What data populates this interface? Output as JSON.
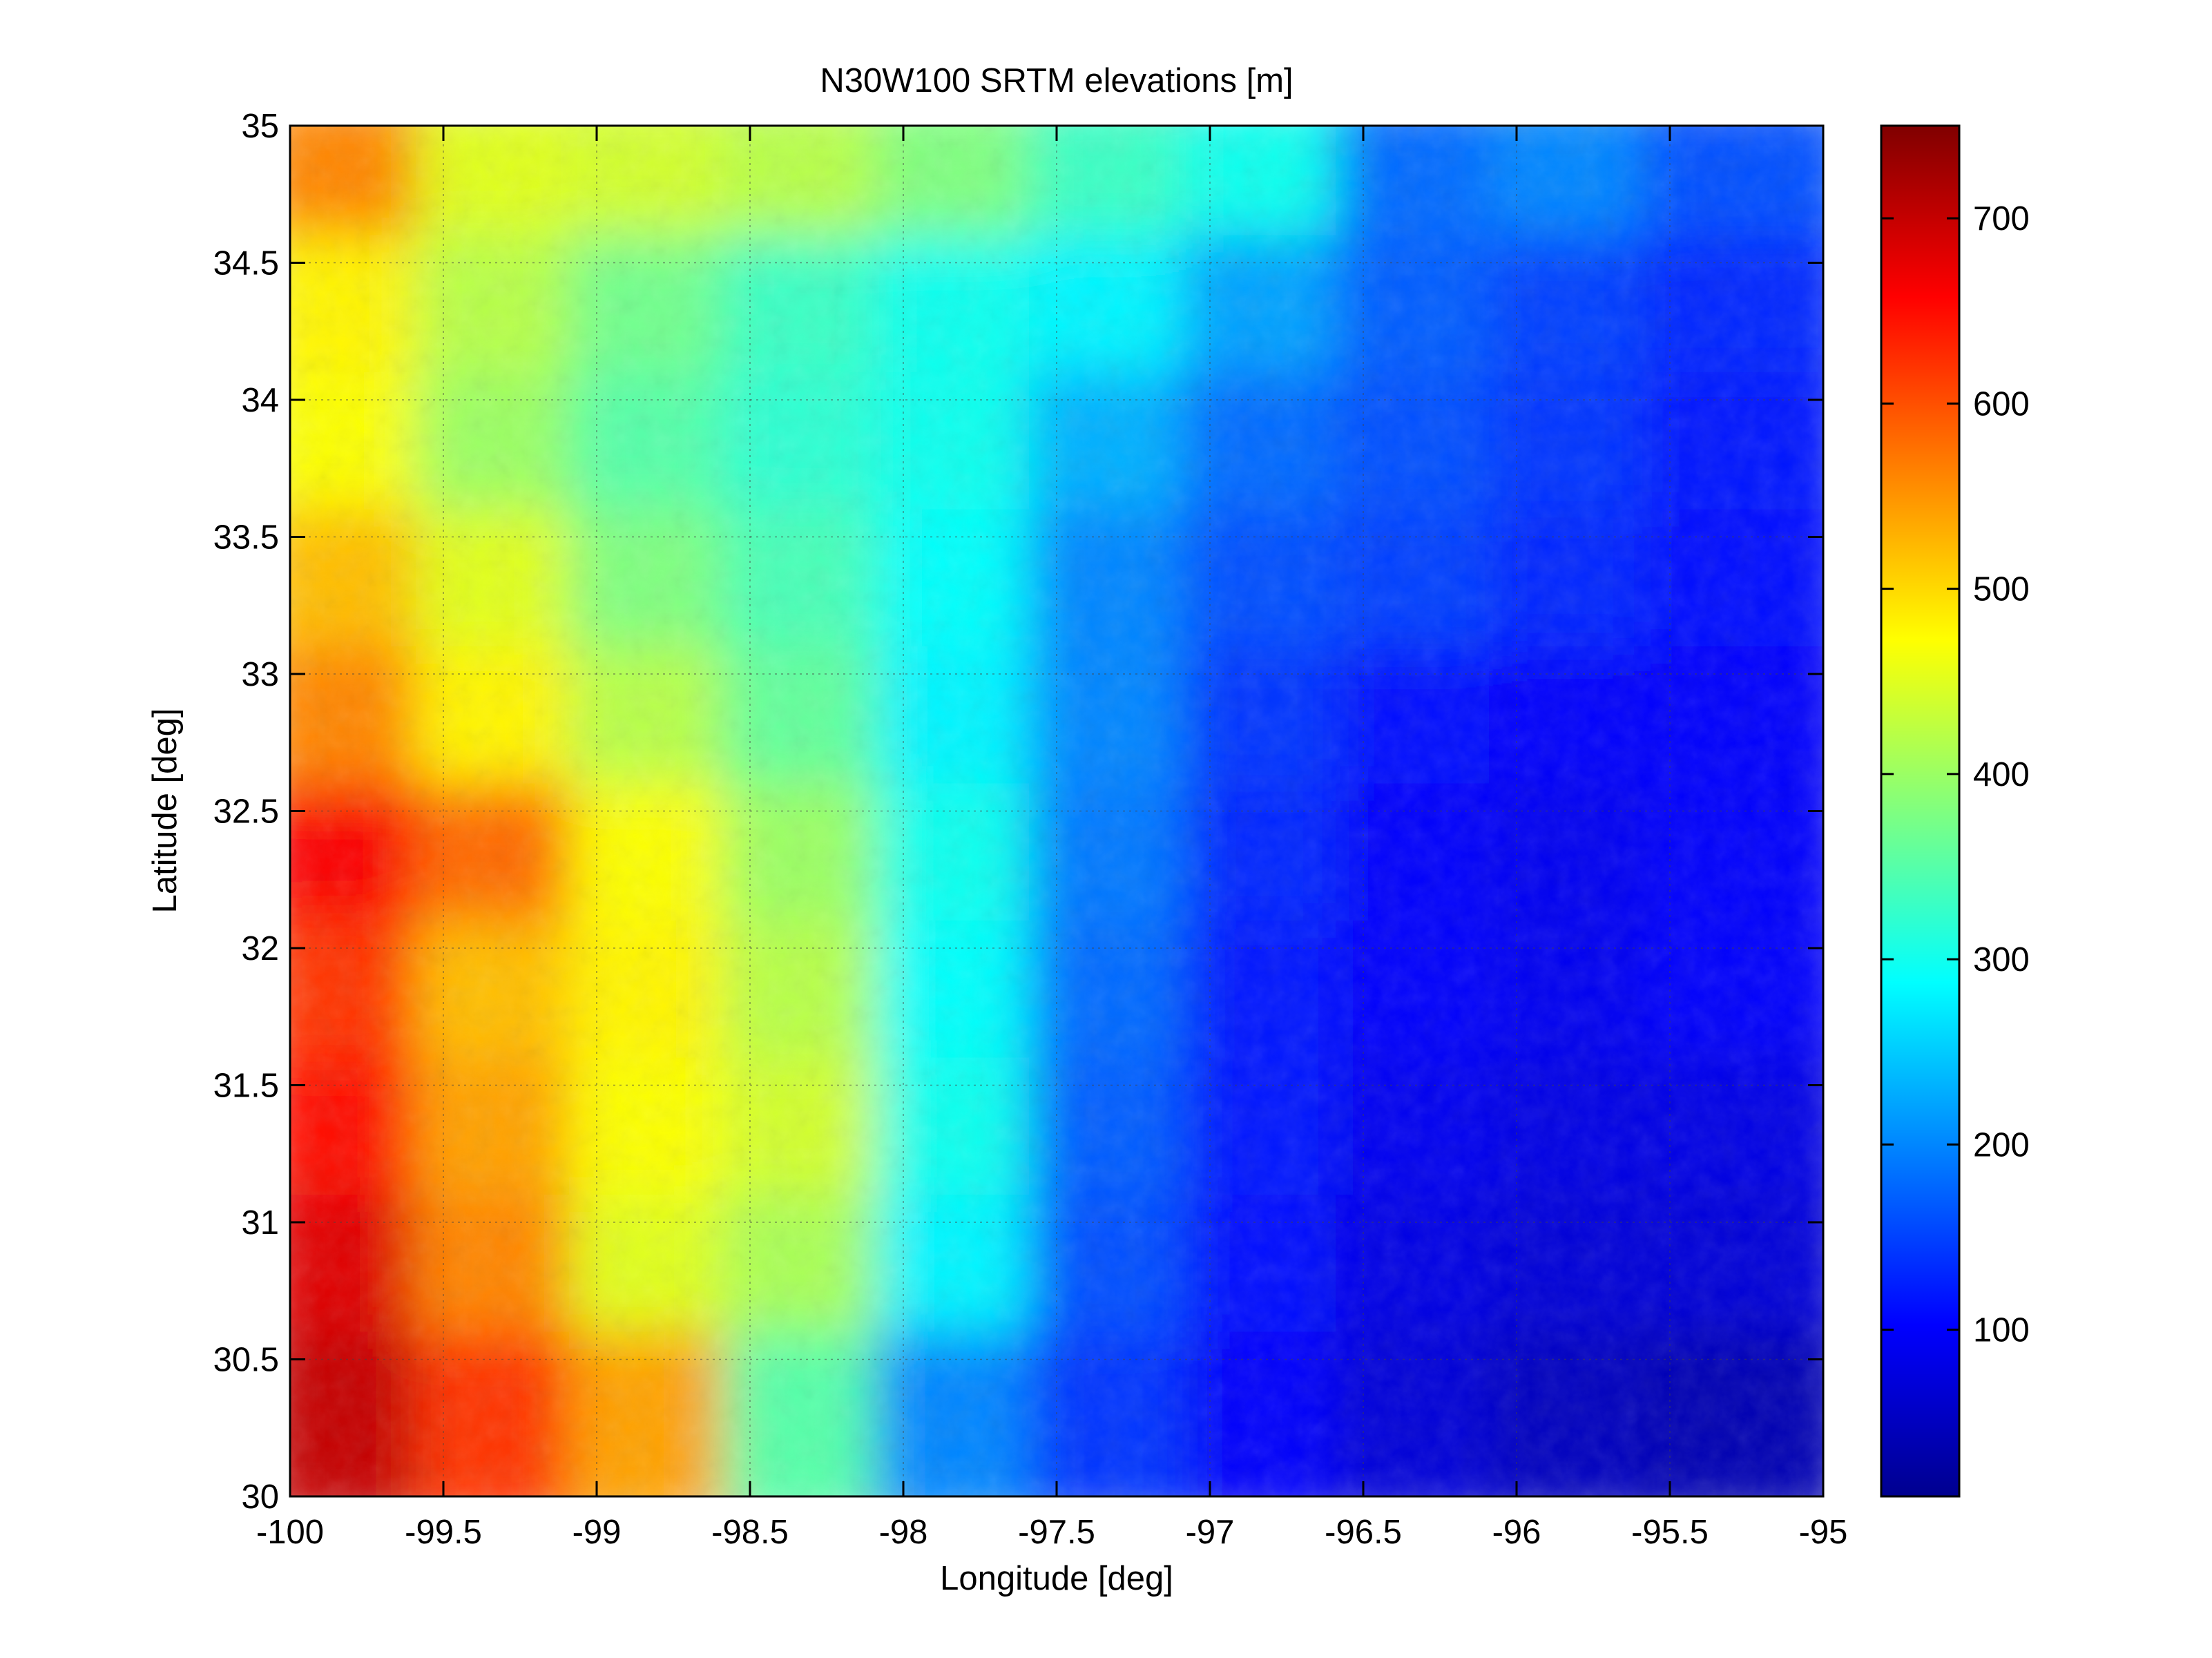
{
  "chart_data": {
    "type": "heatmap",
    "title": "N30W100 SRTM elevations [m]",
    "xlabel": "Longitude [deg]",
    "ylabel": "Latitude [deg]",
    "xlim": [
      -100,
      -95
    ],
    "ylim": [
      30,
      35
    ],
    "x_ticks": [
      -100,
      -99.5,
      -99,
      -98.5,
      -98,
      -97.5,
      -97,
      -96.5,
      -96,
      -95.5,
      -95
    ],
    "x_tick_labels": [
      "-100",
      "-99.5",
      "-99",
      "-98.5",
      "-98",
      "-97.5",
      "-97",
      "-96.5",
      "-96",
      "-95.5",
      "-95"
    ],
    "y_ticks": [
      30,
      30.5,
      31,
      31.5,
      32,
      32.5,
      33,
      33.5,
      34,
      34.5,
      35
    ],
    "y_tick_labels": [
      "30",
      "30.5",
      "31",
      "31.5",
      "32",
      "32.5",
      "33",
      "33.5",
      "34",
      "34.5",
      "35"
    ],
    "grid": true,
    "colormap": "jet",
    "clim": [
      10,
      750
    ],
    "colorbar_ticks": [
      100,
      200,
      300,
      400,
      500,
      600,
      700
    ],
    "colorbar_tick_labels": [
      "100",
      "200",
      "300",
      "400",
      "500",
      "600",
      "700"
    ],
    "colorbar_position": "right",
    "approximate_elevation_samples_m": {
      "lat_rows": [
        34.75,
        34.25,
        33.75,
        33.25,
        32.75,
        32.25,
        31.75,
        31.25,
        30.75,
        30.25
      ],
      "lon_cols": [
        -99.75,
        -99.25,
        -98.75,
        -98.25,
        -97.75,
        -97.25,
        -96.75,
        -96.25,
        -95.75,
        -95.25
      ],
      "values": [
        [
          560,
          450,
          440,
          420,
          380,
          330,
          300,
          180,
          200,
          160
        ],
        [
          480,
          420,
          370,
          330,
          300,
          280,
          220,
          170,
          150,
          130
        ],
        [
          470,
          400,
          350,
          320,
          300,
          230,
          180,
          160,
          140,
          120
        ],
        [
          520,
          450,
          380,
          340,
          290,
          200,
          160,
          150,
          130,
          110
        ],
        [
          560,
          480,
          420,
          360,
          280,
          200,
          140,
          110,
          100,
          100
        ],
        [
          660,
          580,
          470,
          400,
          300,
          190,
          130,
          100,
          90,
          100
        ],
        [
          620,
          520,
          480,
          420,
          290,
          180,
          120,
          100,
          90,
          100
        ],
        [
          650,
          540,
          470,
          440,
          300,
          170,
          120,
          90,
          80,
          80
        ],
        [
          680,
          560,
          450,
          410,
          280,
          160,
          110,
          80,
          70,
          70
        ],
        [
          700,
          620,
          540,
          350,
          200,
          140,
          100,
          70,
          50,
          40
        ]
      ]
    }
  }
}
